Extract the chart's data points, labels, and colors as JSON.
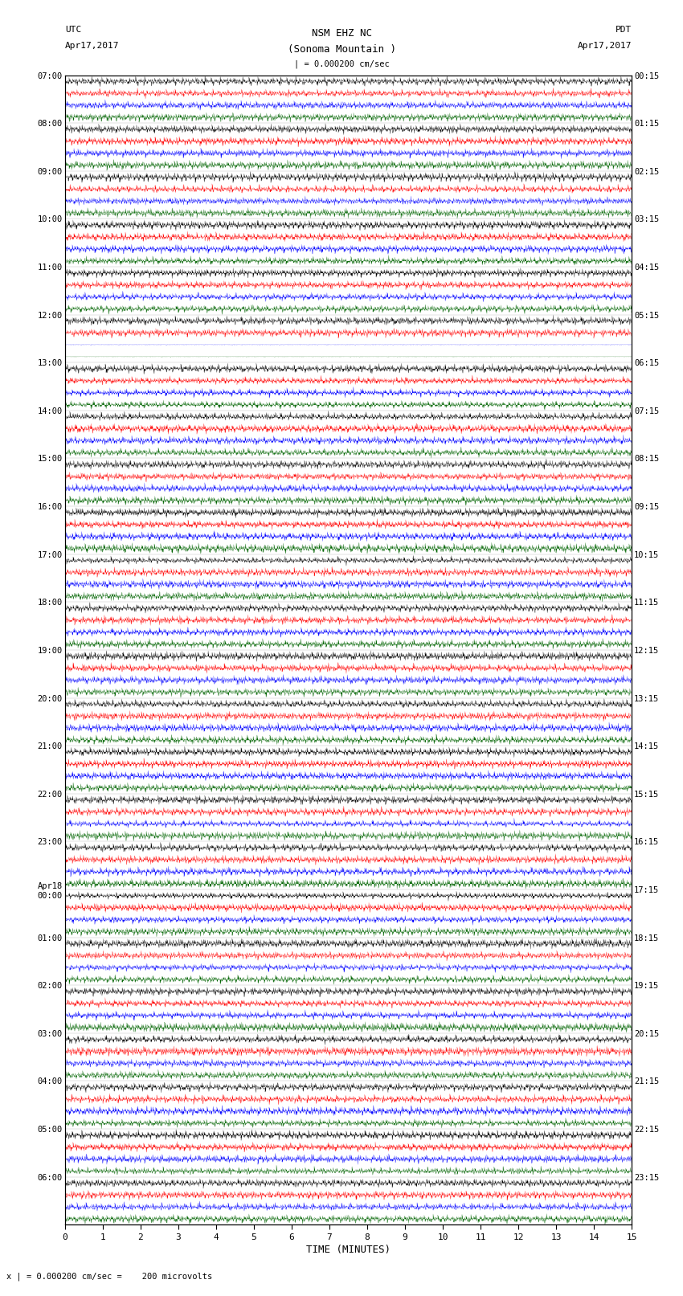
{
  "title_line1": "NSM EHZ NC",
  "title_line2": "(Sonoma Mountain )",
  "scale_text": "| = 0.000200 cm/sec",
  "xlabel": "TIME (MINUTES)",
  "footer": "x | = 0.000200 cm/sec =    200 microvolts",
  "utc_times_labeled": [
    "07:00",
    "08:00",
    "09:00",
    "10:00",
    "11:00",
    "12:00",
    "13:00",
    "14:00",
    "15:00",
    "16:00",
    "17:00",
    "18:00",
    "19:00",
    "20:00",
    "21:00",
    "22:00",
    "23:00",
    "Apr18\n00:00",
    "01:00",
    "02:00",
    "03:00",
    "04:00",
    "05:00",
    "06:00"
  ],
  "pdt_times_labeled": [
    "00:15",
    "01:15",
    "02:15",
    "03:15",
    "04:15",
    "05:15",
    "06:15",
    "07:15",
    "08:15",
    "09:15",
    "10:15",
    "11:15",
    "12:15",
    "13:15",
    "14:15",
    "15:15",
    "16:15",
    "17:15",
    "18:15",
    "19:15",
    "20:15",
    "21:15",
    "22:15",
    "23:15"
  ],
  "num_hour_groups": 24,
  "subrows_per_group": 4,
  "colors_cycle": [
    "black",
    "red",
    "blue",
    "darkgreen"
  ],
  "x_min": 0,
  "x_max": 15,
  "x_ticks": [
    0,
    1,
    2,
    3,
    4,
    5,
    6,
    7,
    8,
    9,
    10,
    11,
    12,
    13,
    14,
    15
  ],
  "bg_color": "white",
  "fig_width": 8.5,
  "fig_height": 16.13,
  "dpi": 100,
  "left_utc": "UTC",
  "left_date": "Apr17,2017",
  "right_pdt": "PDT",
  "right_date": "Apr17,2017"
}
